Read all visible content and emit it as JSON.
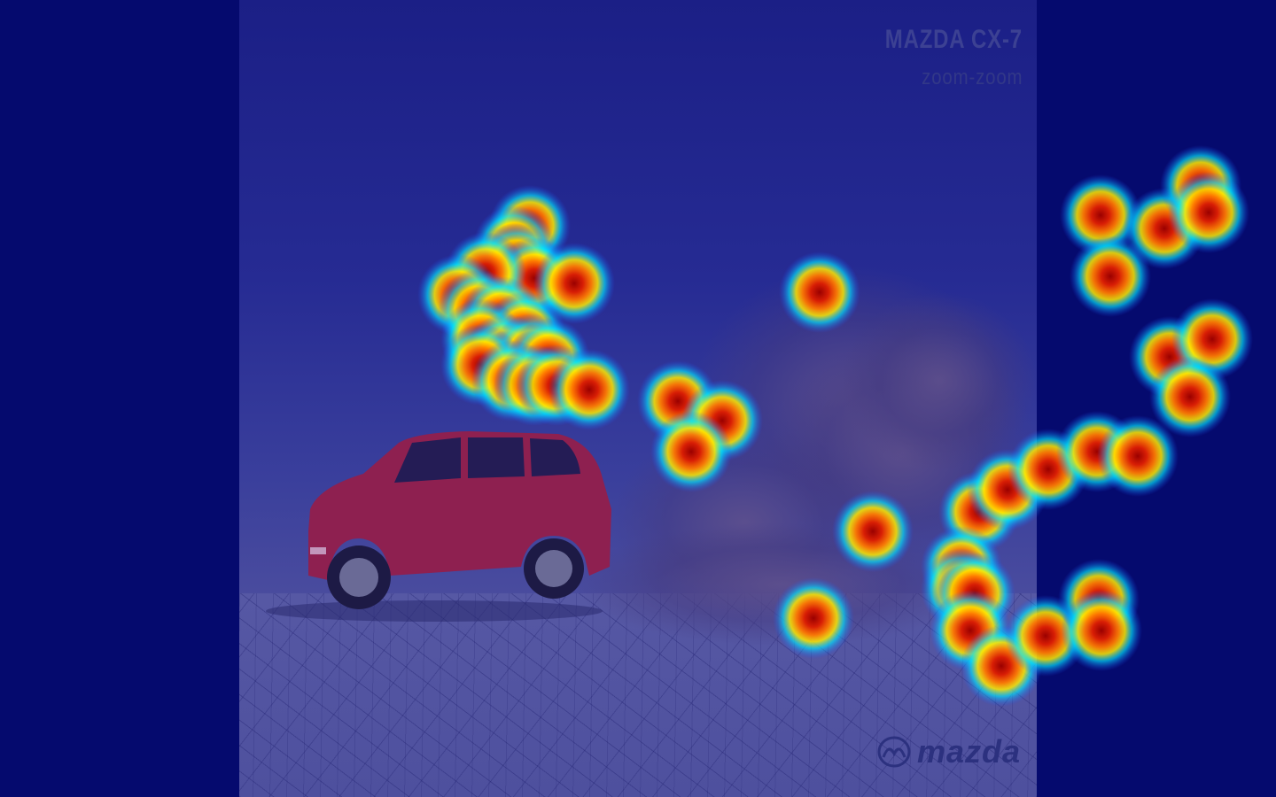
{
  "photo": {
    "title": "MAZDA CX-7",
    "tagline": "zoom-zoom",
    "brand": "mazda"
  },
  "colors": {
    "background": "#050a6e",
    "heat_hot": "#9a0000",
    "heat_mid": "#ffea00",
    "heat_cool": "#00e5ff",
    "car_body": "#8e2050"
  },
  "icons": [
    "mazda-logo-icon",
    "car-image",
    "dust-cloud"
  ]
}
